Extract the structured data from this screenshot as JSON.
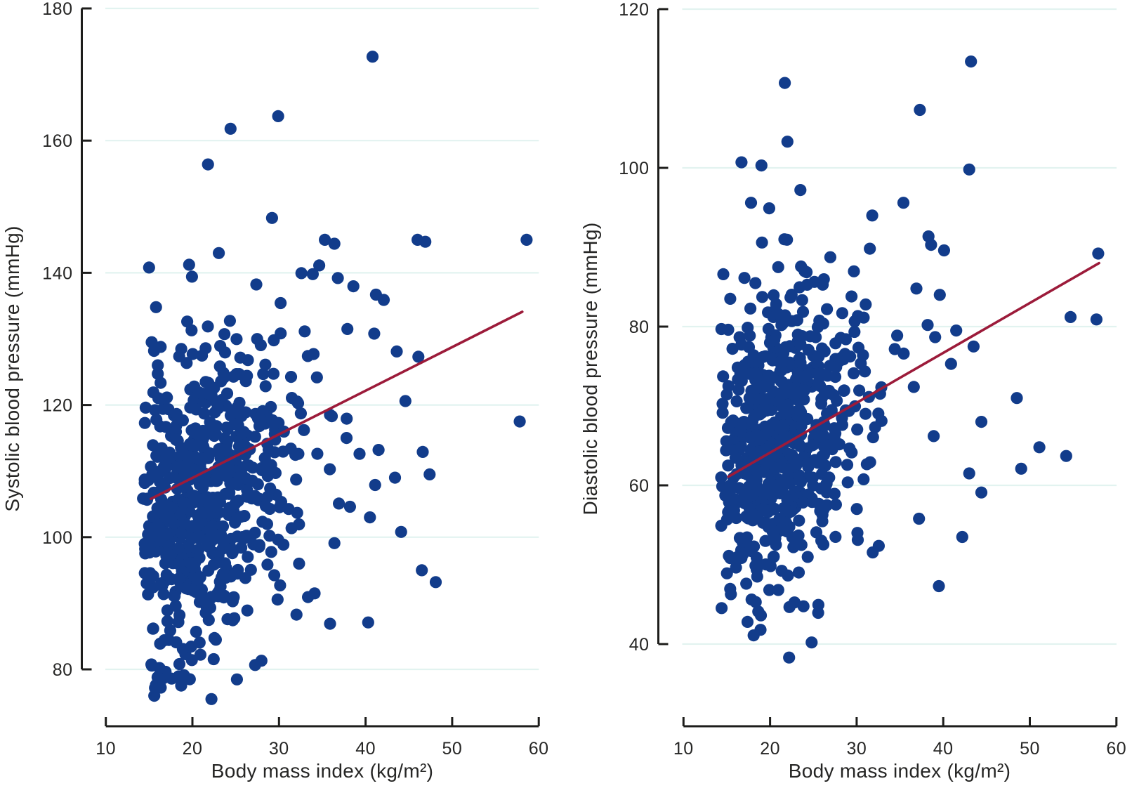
{
  "figure": {
    "description": "Two-panel scatter plot of blood pressure versus body mass index with fitted regression lines",
    "background": "#ffffff"
  },
  "styles": {
    "point_color": "#123c8b",
    "trend_color": "#9c1b3a",
    "grid_color": "#e2f3f0",
    "axis_color": "#1d1d1b",
    "text_color": "#262625"
  },
  "chart_data": [
    {
      "type": "scatter",
      "panel": "left",
      "title": "",
      "xlabel": "Body mass index (kg/m²)",
      "ylabel": "Systolic blood pressure (mmHg)",
      "xlim": [
        10,
        60
      ],
      "ylim": [
        80,
        180
      ],
      "xticks": [
        10,
        20,
        30,
        40,
        50,
        60
      ],
      "yticks": [
        80,
        100,
        120,
        140,
        160,
        180
      ],
      "grid": "horizontal",
      "legend": "none",
      "n_points_est": 685,
      "trend_line": {
        "x1": 15.2,
        "y1": 105.8,
        "x2": 58.1,
        "y2": 134.1,
        "slope_mmHg_per_unit": 0.66
      },
      "cloud": {
        "n": 640,
        "seed": 11,
        "x_median": 21.3,
        "x_log_sigma": 0.205,
        "x_min": 14.3,
        "x_max": 40,
        "y_center": 106,
        "y_slope": 0.66,
        "y_sd": 11.5,
        "y_min": 77,
        "y_max": 143
      },
      "outlier_points": [
        [
          40.8,
          172.7
        ],
        [
          29.9,
          163.7
        ],
        [
          24.4,
          161.8
        ],
        [
          21.8,
          156.4
        ],
        [
          29.2,
          148.3
        ],
        [
          35.3,
          145.0
        ],
        [
          36.4,
          144.4
        ],
        [
          46.0,
          145.0
        ],
        [
          46.9,
          144.7
        ],
        [
          58.6,
          145.0
        ],
        [
          15.0,
          140.8
        ],
        [
          33.9,
          139.8
        ],
        [
          36.8,
          139.2
        ],
        [
          15.8,
          134.8
        ],
        [
          41.2,
          136.7
        ],
        [
          42.1,
          135.9
        ],
        [
          37.9,
          131.5
        ],
        [
          41.0,
          130.8
        ],
        [
          43.6,
          128.1
        ],
        [
          46.1,
          127.3
        ],
        [
          15.3,
          129.5
        ],
        [
          16.0,
          126.0
        ],
        [
          14.6,
          119.6
        ],
        [
          36.1,
          118.3
        ],
        [
          37.8,
          115.0
        ],
        [
          39.3,
          112.6
        ],
        [
          57.8,
          117.5
        ],
        [
          44.6,
          120.6
        ],
        [
          41.5,
          113.2
        ],
        [
          43.4,
          109.0
        ],
        [
          46.6,
          112.9
        ],
        [
          47.4,
          109.5
        ],
        [
          41.1,
          107.9
        ],
        [
          44.1,
          100.8
        ],
        [
          40.5,
          103.0
        ],
        [
          38.2,
          104.6
        ],
        [
          36.4,
          99.1
        ],
        [
          46.5,
          95.0
        ],
        [
          48.1,
          93.2
        ],
        [
          40.3,
          87.1
        ],
        [
          35.9,
          86.9
        ],
        [
          15.6,
          76.0
        ],
        [
          22.2,
          75.5
        ],
        [
          17.6,
          78.6
        ],
        [
          19.7,
          78.5
        ],
        [
          16.2,
          80.2
        ]
      ]
    },
    {
      "type": "scatter",
      "panel": "right",
      "title": "",
      "xlabel": "Body mass index (kg/m²)",
      "ylabel": "Diastolic blood pressure (mmHg)",
      "xlim": [
        10,
        60
      ],
      "ylim": [
        40,
        120
      ],
      "xticks": [
        10,
        20,
        30,
        40,
        50,
        60
      ],
      "yticks": [
        40,
        60,
        80,
        100,
        120
      ],
      "grid": "horizontal",
      "legend": "none",
      "n_points_est": 682,
      "trend_line": {
        "x1": 15.2,
        "y1": 61.1,
        "x2": 58.0,
        "y2": 88.0,
        "slope_mmHg_per_unit": 0.63
      },
      "cloud": {
        "n": 640,
        "seed": 77,
        "x_median": 21.3,
        "x_log_sigma": 0.205,
        "x_min": 14.3,
        "x_max": 40,
        "y_center": 66.5,
        "y_slope": 0.62,
        "y_sd": 8.8,
        "y_min": 43.5,
        "y_max": 91.5
      },
      "outlier_points": [
        [
          21.7,
          110.7
        ],
        [
          22.0,
          103.3
        ],
        [
          19.0,
          100.3
        ],
        [
          16.7,
          100.7
        ],
        [
          37.3,
          107.3
        ],
        [
          43.2,
          113.4
        ],
        [
          43.0,
          99.8
        ],
        [
          35.4,
          95.6
        ],
        [
          17.8,
          95.6
        ],
        [
          23.5,
          97.2
        ],
        [
          31.8,
          94.0
        ],
        [
          19.9,
          94.9
        ],
        [
          14.6,
          86.6
        ],
        [
          15.4,
          83.5
        ],
        [
          57.9,
          89.2
        ],
        [
          54.7,
          81.2
        ],
        [
          57.7,
          80.9
        ],
        [
          39.6,
          84.0
        ],
        [
          41.5,
          79.5
        ],
        [
          43.5,
          77.5
        ],
        [
          48.5,
          71.0
        ],
        [
          44.4,
          68.0
        ],
        [
          51.1,
          64.8
        ],
        [
          49.0,
          62.1
        ],
        [
          54.2,
          63.7
        ],
        [
          44.4,
          59.1
        ],
        [
          42.2,
          53.5
        ],
        [
          39.5,
          47.3
        ],
        [
          37.2,
          55.8
        ],
        [
          43.0,
          61.5
        ],
        [
          38.6,
          90.3
        ],
        [
          40.1,
          89.6
        ],
        [
          36.9,
          84.8
        ],
        [
          38.2,
          80.2
        ],
        [
          40.9,
          75.3
        ],
        [
          36.6,
          72.4
        ],
        [
          38.9,
          66.2
        ],
        [
          22.2,
          38.3
        ],
        [
          24.8,
          40.2
        ],
        [
          18.1,
          41.1
        ],
        [
          18.9,
          41.8
        ],
        [
          17.4,
          42.8
        ]
      ]
    }
  ]
}
